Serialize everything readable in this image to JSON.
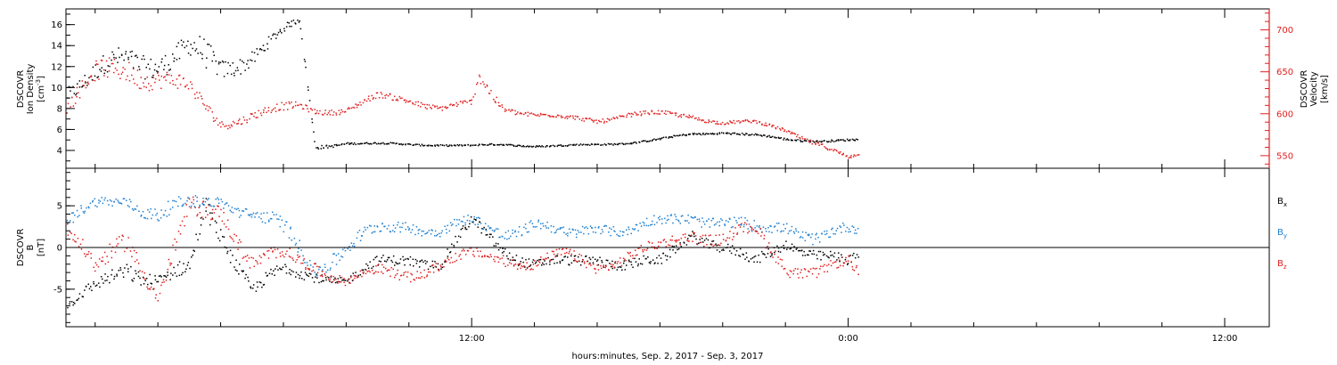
{
  "chart_data": {
    "type": "scatter",
    "xlabel": "hours:minutes, Sep.  2, 2017 - Sep.  3, 2017",
    "x_ticks": [
      "12:00",
      "0:00",
      "12:00"
    ],
    "x_tick_hours": [
      12,
      24,
      36
    ],
    "xlim_hours": [
      -0.93,
      37.42
    ],
    "data_end_hours": 24.3,
    "panels": [
      {
        "id": "top",
        "left_axis": {
          "label": [
            "DSCOVR",
            "Ion Density",
            "[cm^-3]"
          ],
          "ylim": [
            2.3,
            17.5
          ],
          "ticks": [
            "4",
            "6",
            "8",
            "10",
            "12",
            "14",
            "16"
          ],
          "color": "#000000"
        },
        "right_axis": {
          "label": [
            "DSCOVR",
            "Velocity",
            "[km/s]"
          ],
          "ylim": [
            535,
            725
          ],
          "ticks": [
            "550",
            "600",
            "650",
            "700"
          ],
          "color": "#e02020"
        },
        "series": [
          {
            "key": "density",
            "axis": "left",
            "color": "#000000",
            "x": [
              -0.9,
              0,
              1,
              2,
              3,
              3.4,
              4,
              5,
              6,
              6.5,
              7,
              8,
              9,
              10,
              11,
              12,
              13,
              14,
              15,
              16,
              17,
              18,
              19,
              20,
              21,
              22,
              23,
              24,
              24.3
            ],
            "y": [
              10,
              11,
              12.5,
              13,
              13.5,
              12,
              11.5,
              13.5,
              15.5,
              16.3,
              4.3,
              4.8,
              4.7,
              4.6,
              4.6,
              4.5,
              4.6,
              4.5,
              4.5,
              4.6,
              4.8,
              5.1,
              5.6,
              5.8,
              5.5,
              5.1,
              5.0,
              5.0,
              5.0
            ],
            "spread": [
              1.2,
              1.5,
              1.8,
              1.8,
              1.8,
              2.5,
              1.5,
              1.2,
              0.6,
              0.4,
              0.3,
              0.15,
              0.12,
              0.12,
              0.12,
              0.12,
              0.12,
              0.12,
              0.12,
              0.12,
              0.12,
              0.15,
              0.15,
              0.15,
              0.15,
              0.15,
              0.15,
              0.15,
              0.15
            ]
          },
          {
            "key": "velocity",
            "axis": "right",
            "color": "#e02020",
            "x": [
              -0.9,
              0,
              1,
              2,
              3,
              4,
              5,
              6,
              6.5,
              7,
              8,
              9,
              10,
              11,
              12,
              12.2,
              13,
              14,
              15,
              16,
              17,
              18,
              19,
              20,
              21,
              22,
              23,
              24,
              24.3
            ],
            "y": [
              610,
              640,
              660,
              645,
              625,
              590,
              600,
              605,
              610,
              605,
              605,
              620,
              618,
              608,
              612,
              640,
              608,
              600,
              595,
              593,
              600,
              600,
              598,
              590,
              590,
              582,
              565,
              547,
              552
            ],
            "spread": [
              12,
              20,
              22,
              18,
              15,
              8,
              8,
              8,
              6,
              5,
              5,
              6,
              6,
              5,
              5,
              15,
              5,
              4,
              4,
              4,
              4,
              4,
              4,
              3,
              3,
              3,
              4,
              3,
              3
            ]
          }
        ]
      },
      {
        "id": "bottom",
        "left_axis": {
          "label": [
            "DSCOVR",
            "B",
            "[nT]"
          ],
          "ylim": [
            -9.5,
            9.5
          ],
          "ticks": [
            "-5",
            "0",
            "5"
          ],
          "color": "#000000"
        },
        "zero_line": true,
        "series": [
          {
            "key": "Bx",
            "name": "B",
            "subscript": "x",
            "color": "#000000",
            "x": [
              -0.9,
              0,
              1,
              2,
              3,
              3.5,
              4,
              5,
              6,
              7,
              8,
              9,
              10,
              11,
              12,
              13,
              14,
              15,
              16,
              17,
              18,
              19,
              20,
              21,
              22,
              23,
              24,
              24.3
            ],
            "y": [
              -7,
              -5,
              -2,
              -4,
              -3,
              5,
              2,
              -5,
              -3,
              -3,
              -4,
              -2,
              -1,
              -2,
              3,
              0,
              -2,
              -2,
              -1,
              -2,
              -2,
              2,
              0,
              -2,
              1,
              -1,
              -2,
              -1
            ],
            "spread": [
              0.8,
              1.2,
              1.5,
              1.5,
              1.5,
              2,
              1.5,
              1.2,
              1.2,
              1.0,
              0.8,
              1.0,
              1.0,
              1.0,
              1.0,
              1.0,
              1.0,
              1.0,
              1.0,
              1.0,
              1.0,
              1.0,
              1.0,
              1.0,
              1.0,
              1.0,
              1.0,
              0.8
            ]
          },
          {
            "key": "By",
            "name": "B",
            "subscript": "y",
            "color": "#2080d0",
            "x": [
              -0.9,
              0,
              1,
              2,
              3,
              4,
              5,
              6,
              7,
              8,
              9,
              10,
              11,
              12,
              13,
              14,
              15,
              16,
              17,
              18,
              19,
              20,
              21,
              22,
              23,
              24,
              24.3
            ],
            "y": [
              3,
              5,
              6,
              4,
              5,
              6,
              4,
              2,
              -2,
              0,
              2,
              3,
              2,
              3,
              2,
              3,
              1,
              3,
              2,
              3,
              4,
              3,
              2,
              3,
              1,
              2,
              2
            ],
            "spread": [
              1.2,
              1.0,
              1.0,
              1.5,
              1.2,
              1.0,
              1.2,
              1.5,
              1.5,
              1.5,
              1.2,
              1.0,
              1.0,
              1.0,
              1.2,
              1.0,
              1.2,
              1.0,
              1.0,
              1.0,
              1.0,
              1.0,
              1.2,
              1.0,
              1.2,
              1.0,
              0.8
            ]
          },
          {
            "key": "Bz",
            "name": "B",
            "subscript": "z",
            "color": "#e02020",
            "x": [
              -0.9,
              0,
              1,
              2,
              3,
              4,
              5,
              6,
              7,
              8,
              9,
              10,
              11,
              12,
              13,
              14,
              15,
              16,
              17,
              18,
              19,
              20,
              21,
              22,
              23,
              24,
              24.3
            ],
            "y": [
              2,
              -3,
              2,
              -6,
              4,
              5,
              -2,
              -1,
              -2,
              -4,
              -3,
              -3,
              -2,
              -1,
              -1,
              -2,
              -1,
              -2,
              -1,
              0,
              2,
              1,
              2,
              -2,
              -3,
              -2,
              -3
            ],
            "spread": [
              1.5,
              1.5,
              2.0,
              1.5,
              2.0,
              1.5,
              1.5,
              1.2,
              1.0,
              0.8,
              1.0,
              1.0,
              1.0,
              1.0,
              1.0,
              1.0,
              1.0,
              1.0,
              1.0,
              1.0,
              1.2,
              1.2,
              1.2,
              1.2,
              1.0,
              1.0,
              0.8
            ]
          }
        ]
      }
    ]
  }
}
